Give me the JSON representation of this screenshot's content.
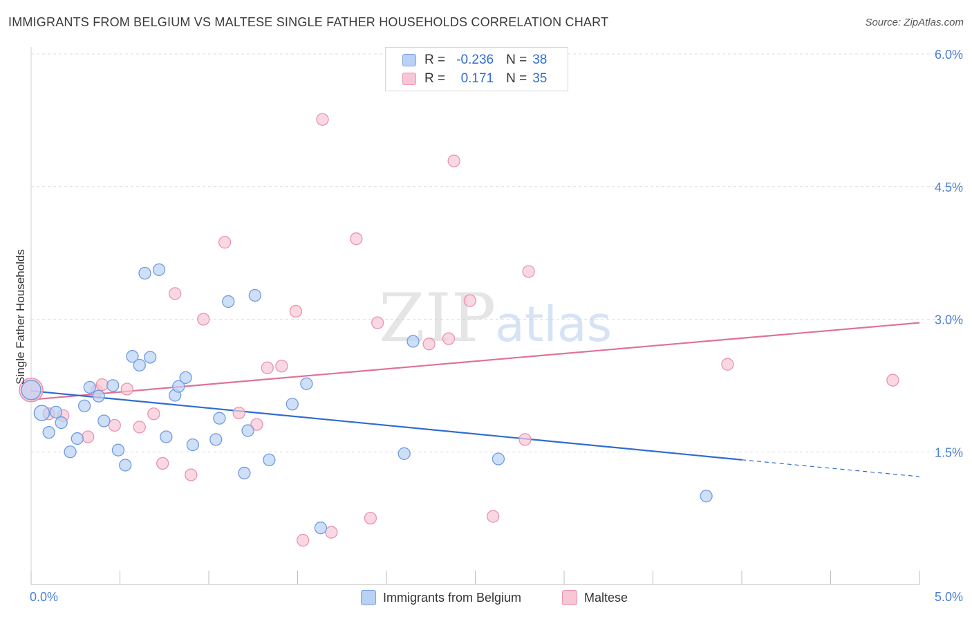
{
  "header": {
    "title": "IMMIGRANTS FROM BELGIUM VS MALTESE SINGLE FATHER HOUSEHOLDS CORRELATION CHART",
    "source": "Source: ZipAtlas.com"
  },
  "watermark": {
    "zip": "ZIP",
    "atlas": "atlas"
  },
  "stats": {
    "row1": {
      "r_label": "R =",
      "r_value": "-0.236",
      "n_label": "N =",
      "n_value": "38"
    },
    "row2": {
      "r_label": "R =",
      "r_value": "0.171",
      "n_label": "N =",
      "n_value": "35"
    }
  },
  "legend": {
    "series1": "Immigrants from Belgium",
    "series2": "Maltese"
  },
  "colors": {
    "blue_fill": "#b9d1f5",
    "blue_stroke": "#6f9be0",
    "blue_line": "#2f6cd0",
    "pink_fill": "#f8c7d6",
    "pink_stroke": "#e993ae",
    "pink_line": "#e0719a",
    "tick_text": "#4a7fd4",
    "grid": "#dddddd"
  },
  "chart_data": {
    "type": "scatter",
    "title": "IMMIGRANTS FROM BELGIUM VS MALTESE SINGLE FATHER HOUSEHOLDS CORRELATION CHART",
    "xlabel": "",
    "ylabel": "Single Father Households",
    "xlim": [
      0.0,
      5.0
    ],
    "ylim": [
      0.0,
      6.0
    ],
    "x_ticks": [
      "0.0%",
      "5.0%"
    ],
    "y_ticks": [
      {
        "value": 1.5,
        "label": "1.5%"
      },
      {
        "value": 3.0,
        "label": "3.0%"
      },
      {
        "value": 4.5,
        "label": "4.5%"
      },
      {
        "value": 6.0,
        "label": "6.0%"
      }
    ],
    "grid": true,
    "legend_position": "bottom-center",
    "series": [
      {
        "name": "Immigrants from Belgium",
        "color": "#b9d1f5",
        "trend": {
          "x": [
            0.0,
            4.0
          ],
          "y": [
            2.19,
            1.41
          ],
          "dashed_to_x": 5.0,
          "dashed_y": 1.22
        },
        "points": [
          {
            "x": 0.0,
            "y": 2.2,
            "big": true
          },
          {
            "x": 0.06,
            "y": 1.94,
            "big": true
          },
          {
            "x": 0.1,
            "y": 1.72
          },
          {
            "x": 0.14,
            "y": 1.95
          },
          {
            "x": 0.17,
            "y": 1.83
          },
          {
            "x": 0.22,
            "y": 1.5
          },
          {
            "x": 0.26,
            "y": 1.65
          },
          {
            "x": 0.3,
            "y": 2.02
          },
          {
            "x": 0.33,
            "y": 2.23
          },
          {
            "x": 0.38,
            "y": 2.13
          },
          {
            "x": 0.41,
            "y": 1.85
          },
          {
            "x": 0.46,
            "y": 2.25
          },
          {
            "x": 0.49,
            "y": 1.52
          },
          {
            "x": 0.53,
            "y": 1.35
          },
          {
            "x": 0.57,
            "y": 2.58
          },
          {
            "x": 0.61,
            "y": 2.48
          },
          {
            "x": 0.64,
            "y": 3.52
          },
          {
            "x": 0.67,
            "y": 2.57
          },
          {
            "x": 0.72,
            "y": 3.56
          },
          {
            "x": 0.76,
            "y": 1.67
          },
          {
            "x": 0.81,
            "y": 2.14
          },
          {
            "x": 0.83,
            "y": 2.24
          },
          {
            "x": 0.87,
            "y": 2.34
          },
          {
            "x": 0.91,
            "y": 1.58
          },
          {
            "x": 1.04,
            "y": 1.64
          },
          {
            "x": 1.06,
            "y": 1.88
          },
          {
            "x": 1.11,
            "y": 3.2
          },
          {
            "x": 1.2,
            "y": 1.26
          },
          {
            "x": 1.22,
            "y": 1.74
          },
          {
            "x": 1.26,
            "y": 3.27
          },
          {
            "x": 1.34,
            "y": 1.41
          },
          {
            "x": 1.47,
            "y": 2.04
          },
          {
            "x": 1.55,
            "y": 2.27
          },
          {
            "x": 1.63,
            "y": 0.64
          },
          {
            "x": 2.1,
            "y": 1.48
          },
          {
            "x": 2.15,
            "y": 2.75
          },
          {
            "x": 2.63,
            "y": 1.42
          },
          {
            "x": 3.8,
            "y": 1.0
          }
        ]
      },
      {
        "name": "Maltese",
        "color": "#f8c7d6",
        "trend": {
          "x": [
            0.0,
            5.0
          ],
          "y": [
            2.09,
            2.96
          ]
        },
        "points": [
          {
            "x": 0.0,
            "y": 2.2,
            "big": true
          },
          {
            "x": 0.1,
            "y": 1.93
          },
          {
            "x": 0.18,
            "y": 1.91
          },
          {
            "x": 0.32,
            "y": 1.67
          },
          {
            "x": 0.37,
            "y": 2.19
          },
          {
            "x": 0.4,
            "y": 2.26
          },
          {
            "x": 0.47,
            "y": 1.8
          },
          {
            "x": 0.54,
            "y": 2.21
          },
          {
            "x": 0.61,
            "y": 1.78
          },
          {
            "x": 0.69,
            "y": 1.93
          },
          {
            "x": 0.74,
            "y": 1.37
          },
          {
            "x": 0.81,
            "y": 3.29
          },
          {
            "x": 0.9,
            "y": 1.24
          },
          {
            "x": 0.97,
            "y": 3.0
          },
          {
            "x": 1.09,
            "y": 3.87
          },
          {
            "x": 1.17,
            "y": 1.94
          },
          {
            "x": 1.27,
            "y": 1.81
          },
          {
            "x": 1.33,
            "y": 2.45
          },
          {
            "x": 1.41,
            "y": 2.47
          },
          {
            "x": 1.49,
            "y": 3.09
          },
          {
            "x": 1.53,
            "y": 0.5
          },
          {
            "x": 1.64,
            "y": 5.26
          },
          {
            "x": 1.69,
            "y": 0.59
          },
          {
            "x": 1.83,
            "y": 3.91
          },
          {
            "x": 1.91,
            "y": 0.75
          },
          {
            "x": 1.95,
            "y": 2.96
          },
          {
            "x": 2.24,
            "y": 2.72
          },
          {
            "x": 2.35,
            "y": 2.78
          },
          {
            "x": 2.38,
            "y": 4.79
          },
          {
            "x": 2.47,
            "y": 3.21
          },
          {
            "x": 2.6,
            "y": 0.77
          },
          {
            "x": 2.78,
            "y": 1.64
          },
          {
            "x": 2.8,
            "y": 3.54
          },
          {
            "x": 3.92,
            "y": 2.49
          },
          {
            "x": 4.85,
            "y": 2.31
          }
        ]
      }
    ]
  }
}
